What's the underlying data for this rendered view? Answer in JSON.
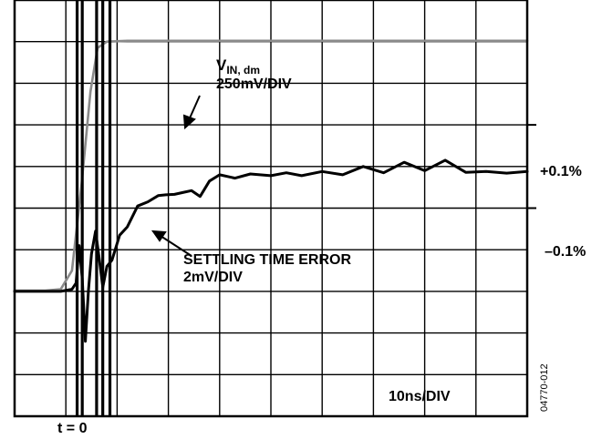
{
  "chart_data": {
    "type": "line",
    "title": "",
    "xlabel": "",
    "ylabel": "",
    "grid": true,
    "x_divisions": 10,
    "y_divisions": 10,
    "xlim": [
      0,
      10
    ],
    "ylim": [
      0,
      10
    ],
    "colors": {
      "input_trace": "#8a8a8a",
      "error_trace": "#000000",
      "grid": "#000000"
    },
    "annotations": {
      "vin_main": "V",
      "vin_sub": "IN, dm",
      "vin_scale": "250mV/DIV",
      "error_label": "SETTLING TIME ERROR",
      "error_scale": "2mV/DIV",
      "time_scale": "10ns/DIV",
      "t0": "t = 0",
      "plus_level": "+0.1%",
      "minus_level": "–0.1%",
      "figure_id": "04770-012"
    },
    "levels": {
      "plus": 7,
      "minus": 5
    },
    "series": [
      {
        "role": "input",
        "x": [
          0,
          0.6,
          0.9,
          1.12,
          1.3,
          1.48,
          1.62,
          1.8,
          2.2,
          3,
          10
        ],
        "y": [
          3.02,
          3.02,
          3.05,
          3.5,
          5.5,
          7.8,
          8.85,
          9.0,
          9.02,
          9.02,
          9.02
        ]
      },
      {
        "role": "error",
        "x": [
          0,
          0.6,
          0.8,
          0.9,
          1.12,
          1.2,
          1.26,
          1.32,
          1.38,
          1.44,
          1.5,
          1.58,
          1.65,
          1.72,
          1.8,
          1.9,
          2.05,
          2.2,
          2.4,
          2.6,
          2.8,
          2.95,
          3.12,
          3.3,
          3.45,
          3.62,
          3.8,
          4.0,
          4.3,
          4.6,
          5.0,
          5.3,
          5.6,
          6.0,
          6.4,
          6.8,
          7.2,
          7.6,
          8.0,
          8.4,
          8.8,
          9.2,
          9.6,
          10
        ],
        "y": [
          3.0,
          3.0,
          3.0,
          3.0,
          3.05,
          3.2,
          4.1,
          3.3,
          1.8,
          3.0,
          3.9,
          4.45,
          3.8,
          3.1,
          3.6,
          3.75,
          4.35,
          4.55,
          5.05,
          5.15,
          5.3,
          5.32,
          5.33,
          5.38,
          5.42,
          5.28,
          5.65,
          5.8,
          5.72,
          5.82,
          5.78,
          5.85,
          5.78,
          5.88,
          5.8,
          6.0,
          5.85,
          6.1,
          5.9,
          6.15,
          5.86,
          5.88,
          5.84,
          5.88
        ]
      }
    ],
    "spike_x": [
      1.22,
      1.32,
      1.6,
      1.72,
      1.86
    ]
  }
}
